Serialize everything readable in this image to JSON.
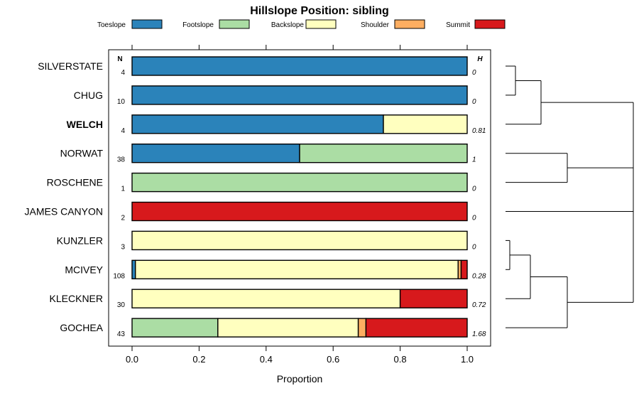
{
  "chart_data": {
    "type": "bar",
    "orientation": "horizontal-stacked",
    "title": "Hillslope Position: sibling",
    "xlabel": "Proportion",
    "xlim": [
      0,
      1
    ],
    "xticks": [
      "0.0",
      "0.2",
      "0.4",
      "0.6",
      "0.8",
      "1.0"
    ],
    "n_header": "N",
    "h_header": "H",
    "legend": [
      {
        "name": "Toeslope",
        "color": "#2b83ba"
      },
      {
        "name": "Footslope",
        "color": "#abdda4"
      },
      {
        "name": "Backslope",
        "color": "#ffffbf"
      },
      {
        "name": "Shoulder",
        "color": "#fdae61"
      },
      {
        "name": "Summit",
        "color": "#d7191c"
      }
    ],
    "rows": [
      {
        "label": "SILVERSTATE",
        "n": "4",
        "h": "0",
        "bold": false,
        "values": [
          1.0,
          0,
          0,
          0,
          0
        ]
      },
      {
        "label": "CHUG",
        "n": "10",
        "h": "0",
        "bold": false,
        "values": [
          1.0,
          0,
          0,
          0,
          0
        ]
      },
      {
        "label": "WELCH",
        "n": "4",
        "h": "0.81",
        "bold": true,
        "values": [
          0.75,
          0,
          0.25,
          0,
          0
        ]
      },
      {
        "label": "NORWAT",
        "n": "38",
        "h": "1",
        "bold": false,
        "values": [
          0.5,
          0.5,
          0,
          0,
          0
        ]
      },
      {
        "label": "ROSCHENE",
        "n": "1",
        "h": "0",
        "bold": false,
        "values": [
          0,
          1.0,
          0,
          0,
          0
        ]
      },
      {
        "label": "JAMES CANYON",
        "n": "2",
        "h": "0",
        "bold": false,
        "values": [
          0,
          0,
          0,
          0,
          1.0
        ]
      },
      {
        "label": "KUNZLER",
        "n": "3",
        "h": "0",
        "bold": false,
        "values": [
          0,
          0,
          1.0,
          0,
          0
        ]
      },
      {
        "label": "MCIVEY",
        "n": "108",
        "h": "0.28",
        "bold": false,
        "values": [
          0.01,
          0,
          0.963,
          0.009,
          0.018
        ]
      },
      {
        "label": "KLECKNER",
        "n": "30",
        "h": "0.72",
        "bold": false,
        "values": [
          0,
          0,
          0.8,
          0,
          0.2
        ]
      },
      {
        "label": "GOCHEA",
        "n": "43",
        "h": "1.68",
        "bold": false,
        "values": [
          0,
          0.256,
          0.419,
          0.023,
          0.302
        ]
      }
    ],
    "dendrogram": true
  }
}
